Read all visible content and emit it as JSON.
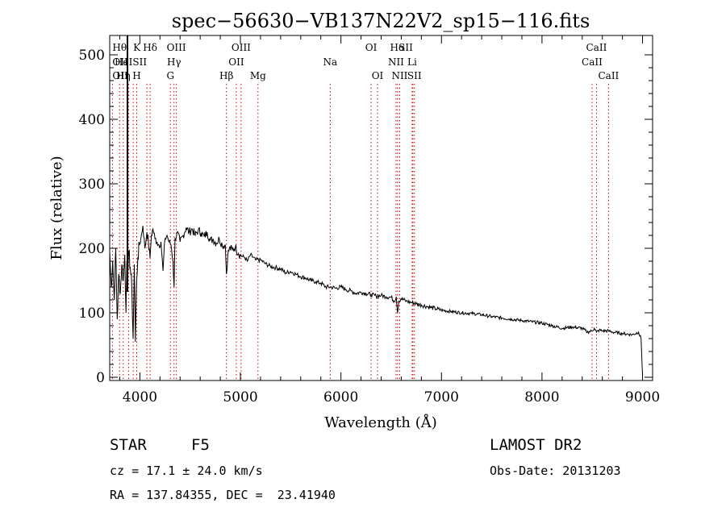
{
  "chart_data": {
    "type": "line",
    "title": "spec−56630−VB137N22V2_sp15−116.fits",
    "xlabel": "Wavelength (Å)",
    "ylabel": "Flux (relative)",
    "xlim": [
      3700,
      9100
    ],
    "ylim": [
      -5,
      530
    ],
    "xticks": [
      4000,
      5000,
      6000,
      7000,
      8000,
      9000
    ],
    "yticks": [
      0,
      100,
      200,
      300,
      400,
      500
    ],
    "grid": false,
    "line_color": "#000000",
    "marker_color": "#cc0000",
    "series": [
      {
        "x": [
          3700,
          3715,
          3730,
          3745,
          3760,
          3775,
          3790,
          3805,
          3820,
          3835,
          3850,
          3862,
          3870,
          3880,
          3890,
          3905,
          3920,
          3933,
          3945,
          3955,
          3968,
          3980,
          3995,
          4010,
          4030,
          4050,
          4070,
          4085,
          4101,
          4115,
          4130,
          4150,
          4170,
          4190,
          4210,
          4230,
          4250,
          4270,
          4290,
          4310,
          4330,
          4340,
          4350,
          4370,
          4400,
          4430,
          4460,
          4490,
          4520,
          4550,
          4580,
          4610,
          4640,
          4670,
          4700,
          4730,
          4760,
          4790,
          4820,
          4850,
          4861,
          4875,
          4890,
          4920,
          4950,
          4980,
          5010,
          5040,
          5070,
          5100,
          5150,
          5200,
          5250,
          5300,
          5350,
          5400,
          5450,
          5500,
          5550,
          5600,
          5650,
          5700,
          5750,
          5800,
          5850,
          5900,
          5950,
          6000,
          6050,
          6100,
          6150,
          6200,
          6250,
          6300,
          6350,
          6400,
          6450,
          6500,
          6530,
          6550,
          6563,
          6575,
          6600,
          6650,
          6700,
          6750,
          6800,
          6850,
          6900,
          6950,
          7000,
          7100,
          7200,
          7300,
          7400,
          7500,
          7600,
          7700,
          7800,
          7900,
          8000,
          8100,
          8200,
          8300,
          8400,
          8450,
          8498,
          8520,
          8542,
          8570,
          8600,
          8662,
          8700,
          8800,
          8900,
          8960,
          8985,
          9000
        ],
        "y": [
          195,
          140,
          180,
          120,
          200,
          90,
          160,
          130,
          175,
          150,
          190,
          100,
          180,
          155,
          195,
          170,
          140,
          60,
          175,
          55,
          150,
          185,
          205,
          215,
          235,
          200,
          225,
          210,
          185,
          220,
          230,
          215,
          210,
          205,
          210,
          165,
          215,
          220,
          210,
          205,
          180,
          140,
          215,
          225,
          210,
          220,
          232,
          225,
          230,
          220,
          228,
          224,
          218,
          225,
          212,
          214,
          208,
          215,
          205,
          205,
          160,
          190,
          200,
          198,
          202,
          192,
          188,
          186,
          180,
          190,
          182,
          182,
          176,
          172,
          170,
          168,
          162,
          164,
          160,
          156,
          154,
          150,
          148,
          146,
          140,
          140,
          138,
          140,
          136,
          134,
          130,
          132,
          130,
          128,
          126,
          127,
          125,
          124,
          118,
          125,
          100,
          118,
          122,
          118,
          116,
          114,
          112,
          110,
          108,
          106,
          104,
          102,
          100,
          99,
          97,
          94,
          92,
          90,
          88,
          86,
          84,
          80,
          76,
          78,
          76,
          70,
          72,
          76,
          70,
          73,
          72,
          72,
          70,
          68,
          66,
          70,
          60,
          5
        ]
      }
    ],
    "lines": [
      {
        "label": "Hθ",
        "x": 3798,
        "row": 0,
        "anchor": "middle"
      },
      {
        "label": "K",
        "x": 3934,
        "row": 0,
        "anchor": "start"
      },
      {
        "label": "Hδ",
        "x": 4102,
        "row": 0,
        "anchor": "middle"
      },
      {
        "label": "OIII",
        "x": 4363,
        "row": 0,
        "anchor": "middle"
      },
      {
        "label": "OIII",
        "x": 5007,
        "row": 0,
        "anchor": "middle"
      },
      {
        "label": "OI",
        "x": 6300,
        "row": 0,
        "anchor": "middle"
      },
      {
        "label": "Hα",
        "x": 6563,
        "row": 0,
        "anchor": "middle"
      },
      {
        "label": "SII",
        "x": 6716,
        "row": 0,
        "anchor": "end"
      },
      {
        "label": "CaII",
        "x": 8542,
        "row": 0,
        "anchor": "middle"
      },
      {
        "label": "OII",
        "x": 3727,
        "row": 1,
        "anchor": "start"
      },
      {
        "label": "He",
        "x": 3889,
        "row": 1,
        "anchor": "end"
      },
      {
        "label": "ISII",
        "x": 4070,
        "row": 1,
        "anchor": "end"
      },
      {
        "label": "Hγ",
        "x": 4340,
        "row": 1,
        "anchor": "middle"
      },
      {
        "label": "OII",
        "x": 4959,
        "row": 1,
        "anchor": "middle"
      },
      {
        "label": "Na",
        "x": 5893,
        "row": 1,
        "anchor": "middle"
      },
      {
        "label": "NII",
        "x": 6548,
        "row": 1,
        "anchor": "middle"
      },
      {
        "label": "Li",
        "x": 6708,
        "row": 1,
        "anchor": "middle"
      },
      {
        "label": "CaII",
        "x": 8498,
        "row": 1,
        "anchor": "middle"
      },
      {
        "label": "OII",
        "x": 3727,
        "row": 2,
        "anchor": "start"
      },
      {
        "label": "Hη",
        "x": 3835,
        "row": 2,
        "anchor": "middle"
      },
      {
        "label": "H",
        "x": 3969,
        "row": 2,
        "anchor": "middle"
      },
      {
        "label": "G",
        "x": 4304,
        "row": 2,
        "anchor": "middle"
      },
      {
        "label": "Hβ",
        "x": 4861,
        "row": 2,
        "anchor": "middle"
      },
      {
        "label": "Mg",
        "x": 5175,
        "row": 2,
        "anchor": "middle"
      },
      {
        "label": "OI",
        "x": 6364,
        "row": 2,
        "anchor": "middle"
      },
      {
        "label": "NII",
        "x": 6584,
        "row": 2,
        "anchor": "middle"
      },
      {
        "label": "SII",
        "x": 6731,
        "row": 2,
        "anchor": "middle"
      },
      {
        "label": "CaII",
        "x": 8662,
        "row": 2,
        "anchor": "middle"
      }
    ]
  },
  "info": {
    "object_class": "STAR",
    "subclass": "F5",
    "survey": "LAMOST DR2",
    "redshift": "cz = 17.1 ± 24.0 km/s",
    "obs_date": "Obs-Date: 20131203",
    "coords": "RA = 137.84355, DEC =  23.41940"
  }
}
